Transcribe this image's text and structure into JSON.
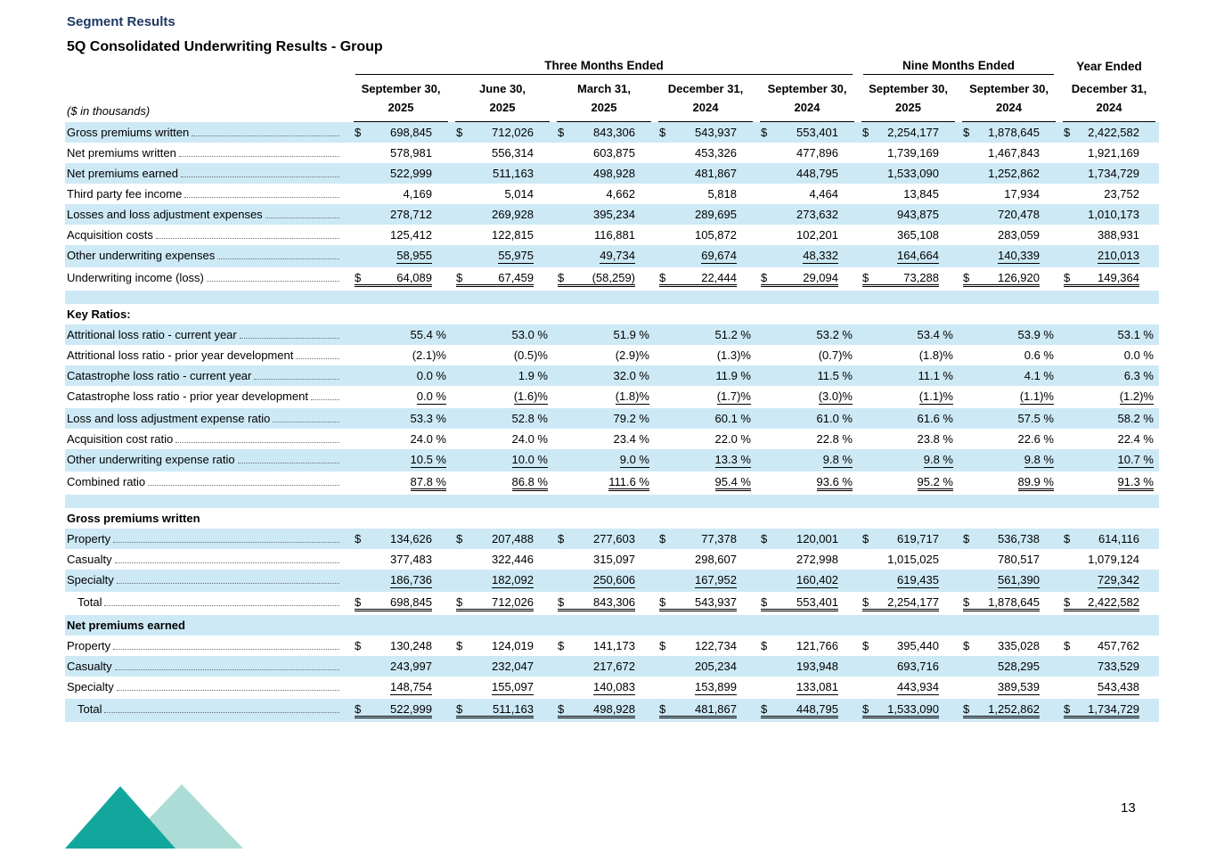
{
  "title": "Segment Results",
  "subtitle": "5Q Consolidated Underwriting Results - Group",
  "page": {
    "number": "13"
  },
  "colors": {
    "row_shade": "#cde9f6",
    "title_navy": "#1f3864",
    "logo_teal_dark": "#12a79c",
    "logo_teal_light": "#abdcd5"
  },
  "table": {
    "currency_symbol": "$",
    "unit_note": "($ in thousands)",
    "groups": [
      {
        "label": "Three Months Ended",
        "span": 5
      },
      {
        "label": "Nine Months Ended",
        "span": 2
      },
      {
        "label": "Year Ended",
        "span": 1
      }
    ],
    "columns": [
      {
        "line1": "September 30,",
        "line2": "2025"
      },
      {
        "line1": "June 30,",
        "line2": "2025"
      },
      {
        "line1": "March 31,",
        "line2": "2025"
      },
      {
        "line1": "December 31,",
        "line2": "2024"
      },
      {
        "line1": "September 30,",
        "line2": "2024"
      },
      {
        "line1": "September 30,",
        "line2": "2025"
      },
      {
        "line1": "September 30,",
        "line2": "2024"
      },
      {
        "line1": "December 31,",
        "line2": "2024"
      }
    ],
    "rows": [
      {
        "label": "Gross premiums written",
        "dollar": true,
        "shade": true,
        "values": [
          "698,845",
          "712,026",
          "843,306",
          "543,937",
          "553,401",
          "2,254,177",
          "1,878,645",
          "2,422,582"
        ]
      },
      {
        "label": "Net premiums written",
        "shade": false,
        "values": [
          "578,981",
          "556,314",
          "603,875",
          "453,326",
          "477,896",
          "1,739,169",
          "1,467,843",
          "1,921,169"
        ]
      },
      {
        "label": "Net premiums earned",
        "shade": true,
        "values": [
          "522,999",
          "511,163",
          "498,928",
          "481,867",
          "448,795",
          "1,533,090",
          "1,252,862",
          "1,734,729"
        ]
      },
      {
        "label": "Third party fee income",
        "shade": false,
        "values": [
          "4,169",
          "5,014",
          "4,662",
          "5,818",
          "4,464",
          "13,845",
          "17,934",
          "23,752"
        ]
      },
      {
        "label": "Losses and loss adjustment expenses",
        "shade": true,
        "values": [
          "278,712",
          "269,928",
          "395,234",
          "289,695",
          "273,632",
          "943,875",
          "720,478",
          "1,010,173"
        ]
      },
      {
        "label": "Acquisition costs",
        "shade": false,
        "values": [
          "125,412",
          "122,815",
          "116,881",
          "105,872",
          "102,201",
          "365,108",
          "283,059",
          "388,931"
        ]
      },
      {
        "label": "Other underwriting expenses",
        "shade": true,
        "underline": "single",
        "values": [
          "58,955",
          "55,975",
          "49,734",
          "69,674",
          "48,332",
          "164,664",
          "140,339",
          "210,013"
        ]
      },
      {
        "label": "Underwriting income (loss)",
        "dollar": true,
        "shade": false,
        "underline": "double",
        "values": [
          "64,089",
          "67,459",
          "(58,259)",
          "22,444",
          "29,094",
          "73,288",
          "126,920",
          "149,364"
        ]
      },
      {
        "type": "spacer",
        "shade": true
      },
      {
        "label": "Key Ratios:",
        "type": "section",
        "shade": false
      },
      {
        "label": "Attritional loss ratio - current year",
        "shade": true,
        "values": [
          "55.4 %",
          "53.0 %",
          "51.9 %",
          "51.2 %",
          "53.2 %",
          "53.4 %",
          "53.9 %",
          "53.1 %"
        ]
      },
      {
        "label": "Attritional loss ratio - prior year development",
        "shade": false,
        "values": [
          "(2.1)%",
          "(0.5)%",
          "(2.9)%",
          "(1.3)%",
          "(0.7)%",
          "(1.8)%",
          "0.6 %",
          "0.0 %"
        ]
      },
      {
        "label": "Catastrophe loss ratio - current year",
        "shade": true,
        "values": [
          "0.0 %",
          "1.9 %",
          "32.0 %",
          "11.9 %",
          "11.5 %",
          "11.1 %",
          "4.1 %",
          "6.3 %"
        ]
      },
      {
        "label": "Catastrophe loss ratio - prior year development",
        "shade": false,
        "underline": "single",
        "values": [
          "0.0 %",
          "(1.6)%",
          "(1.8)%",
          "(1.7)%",
          "(3.0)%",
          "(1.1)%",
          "(1.1)%",
          "(1.2)%"
        ]
      },
      {
        "label": "Loss and loss adjustment expense ratio",
        "shade": true,
        "values": [
          "53.3 %",
          "52.8 %",
          "79.2 %",
          "60.1 %",
          "61.0 %",
          "61.6 %",
          "57.5 %",
          "58.2 %"
        ]
      },
      {
        "label": "Acquisition cost ratio",
        "shade": false,
        "values": [
          "24.0 %",
          "24.0 %",
          "23.4 %",
          "22.0 %",
          "22.8 %",
          "23.8 %",
          "22.6 %",
          "22.4 %"
        ]
      },
      {
        "label": "Other underwriting expense ratio",
        "shade": true,
        "underline": "single",
        "values": [
          "10.5 %",
          "10.0 %",
          "9.0 %",
          "13.3 %",
          "9.8 %",
          "9.8 %",
          "9.8 %",
          "10.7 %"
        ]
      },
      {
        "label": "Combined ratio",
        "shade": false,
        "underline": "double",
        "values": [
          "87.8 %",
          "86.8 %",
          "111.6 %",
          "95.4 %",
          "93.6 %",
          "95.2 %",
          "89.9 %",
          "91.3 %"
        ]
      },
      {
        "type": "spacer",
        "shade": true
      },
      {
        "label": "Gross premiums written",
        "type": "section",
        "shade": false
      },
      {
        "label": "Property",
        "dollar": true,
        "shade": true,
        "values": [
          "134,626",
          "207,488",
          "277,603",
          "77,378",
          "120,001",
          "619,717",
          "536,738",
          "614,116"
        ]
      },
      {
        "label": "Casualty",
        "shade": false,
        "values": [
          "377,483",
          "322,446",
          "315,097",
          "298,607",
          "272,998",
          "1,015,025",
          "780,517",
          "1,079,124"
        ]
      },
      {
        "label": "Specialty",
        "shade": true,
        "underline": "single",
        "values": [
          "186,736",
          "182,092",
          "250,606",
          "167,952",
          "160,402",
          "619,435",
          "561,390",
          "729,342"
        ]
      },
      {
        "label": "Total",
        "indent": true,
        "dollar": true,
        "shade": false,
        "underline": "double",
        "values": [
          "698,845",
          "712,026",
          "843,306",
          "543,937",
          "553,401",
          "2,254,177",
          "1,878,645",
          "2,422,582"
        ]
      },
      {
        "label": "Net premiums earned",
        "type": "section",
        "shade": true
      },
      {
        "label": "Property",
        "dollar": true,
        "shade": false,
        "values": [
          "130,248",
          "124,019",
          "141,173",
          "122,734",
          "121,766",
          "395,440",
          "335,028",
          "457,762"
        ]
      },
      {
        "label": "Casualty",
        "shade": true,
        "values": [
          "243,997",
          "232,047",
          "217,672",
          "205,234",
          "193,948",
          "693,716",
          "528,295",
          "733,529"
        ]
      },
      {
        "label": "Specialty",
        "shade": false,
        "underline": "single",
        "values": [
          "148,754",
          "155,097",
          "140,083",
          "153,899",
          "133,081",
          "443,934",
          "389,539",
          "543,438"
        ]
      },
      {
        "label": "Total",
        "indent": true,
        "dollar": true,
        "shade": true,
        "underline": "double",
        "values": [
          "522,999",
          "511,163",
          "498,928",
          "481,867",
          "448,795",
          "1,533,090",
          "1,252,862",
          "1,734,729"
        ]
      }
    ]
  }
}
